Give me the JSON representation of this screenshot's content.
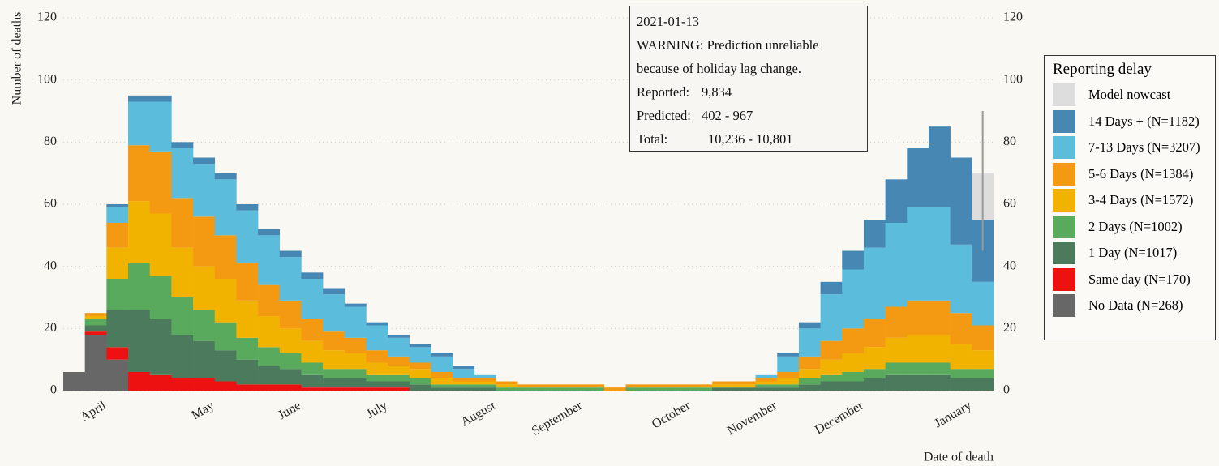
{
  "chart_data": {
    "type": "stacked-bar",
    "y_label": "Number of deaths",
    "x_label": "Date of death",
    "legend_title": "Reporting delay",
    "categories": [
      null,
      "April",
      null,
      null,
      null,
      null,
      "May",
      null,
      null,
      null,
      "June",
      null,
      null,
      null,
      "July",
      null,
      null,
      null,
      null,
      "August",
      null,
      null,
      null,
      "September",
      null,
      null,
      null,
      null,
      "October",
      null,
      null,
      null,
      "November",
      null,
      null,
      null,
      "December",
      null,
      null,
      null,
      null,
      "January",
      null
    ],
    "series": [
      {
        "name": "No Data (N=268)",
        "color": "#676767",
        "values": [
          6,
          18,
          10,
          0,
          0,
          0,
          0,
          0,
          0,
          0,
          0,
          0,
          0,
          0,
          0,
          0,
          0,
          0,
          0,
          0,
          0,
          0,
          0,
          0,
          0,
          0,
          0,
          0,
          0,
          0,
          0,
          0,
          0,
          0,
          0,
          0,
          0,
          0,
          0,
          0,
          0,
          0,
          0
        ]
      },
      {
        "name": "Same day (N=170)",
        "color": "#ee1111",
        "values": [
          0,
          1,
          4,
          6,
          5,
          4,
          4,
          3,
          2,
          2,
          2,
          1,
          1,
          1,
          1,
          1,
          0,
          0,
          0,
          0,
          0,
          0,
          0,
          0,
          0,
          0,
          0,
          0,
          0,
          0,
          0,
          0,
          0,
          0,
          0,
          0,
          0,
          0,
          0,
          0,
          0,
          0,
          0
        ]
      },
      {
        "name": "1 Day (N=1017)",
        "color": "#4c7a5c",
        "values": [
          0,
          2,
          12,
          20,
          18,
          14,
          12,
          10,
          8,
          6,
          5,
          4,
          3,
          3,
          2,
          2,
          2,
          1,
          1,
          1,
          0,
          0,
          0,
          0,
          0,
          0,
          0,
          0,
          0,
          0,
          1,
          1,
          1,
          1,
          2,
          3,
          3,
          4,
          5,
          5,
          5,
          4,
          4
        ]
      },
      {
        "name": "2 Days (N=1002)",
        "color": "#5aaa5e",
        "values": [
          0,
          2,
          10,
          15,
          14,
          12,
          10,
          9,
          7,
          6,
          5,
          4,
          3,
          3,
          2,
          2,
          2,
          1,
          1,
          1,
          1,
          1,
          1,
          1,
          1,
          0,
          1,
          1,
          1,
          1,
          0,
          0,
          1,
          1,
          2,
          2,
          3,
          3,
          4,
          4,
          4,
          3,
          3
        ]
      },
      {
        "name": "3-4 Days (N=1572)",
        "color": "#f2b300",
        "values": [
          0,
          1,
          10,
          20,
          20,
          16,
          14,
          14,
          12,
          10,
          8,
          7,
          6,
          5,
          4,
          3,
          3,
          2,
          1,
          1,
          1,
          0,
          0,
          0,
          0,
          0,
          0,
          0,
          0,
          0,
          1,
          1,
          1,
          2,
          3,
          5,
          6,
          7,
          8,
          9,
          9,
          8,
          6
        ]
      },
      {
        "name": "5-6 Days (N=1384)",
        "color": "#f39a12",
        "values": [
          0,
          1,
          8,
          18,
          20,
          16,
          16,
          14,
          12,
          10,
          9,
          7,
          6,
          5,
          4,
          3,
          2,
          2,
          1,
          1,
          1,
          1,
          1,
          1,
          1,
          1,
          1,
          1,
          1,
          1,
          1,
          1,
          1,
          2,
          4,
          6,
          8,
          9,
          10,
          11,
          11,
          10,
          8
        ]
      },
      {
        "name": "7-13 Days (N=3207)",
        "color": "#5bbcdc",
        "values": [
          0,
          0,
          5,
          14,
          16,
          16,
          17,
          18,
          17,
          16,
          14,
          13,
          12,
          10,
          8,
          6,
          5,
          5,
          3,
          1,
          0,
          0,
          0,
          0,
          0,
          0,
          0,
          0,
          0,
          0,
          0,
          0,
          1,
          5,
          9,
          15,
          19,
          23,
          27,
          30,
          30,
          22,
          14
        ]
      },
      {
        "name": "14 Days + (N=1182)",
        "color": "#4787b3",
        "values": [
          0,
          0,
          1,
          2,
          2,
          2,
          2,
          2,
          2,
          2,
          2,
          2,
          2,
          1,
          1,
          1,
          1,
          1,
          1,
          0,
          0,
          0,
          0,
          0,
          0,
          0,
          0,
          0,
          0,
          0,
          0,
          0,
          0,
          1,
          2,
          4,
          6,
          9,
          14,
          19,
          26,
          28,
          20
        ]
      },
      {
        "name": "Model nowcast",
        "color": "#dddddd",
        "values": [
          0,
          0,
          0,
          0,
          0,
          0,
          0,
          0,
          0,
          0,
          0,
          0,
          0,
          0,
          0,
          0,
          0,
          0,
          0,
          0,
          0,
          0,
          0,
          0,
          0,
          0,
          0,
          0,
          0,
          0,
          0,
          0,
          0,
          0,
          0,
          0,
          0,
          0,
          0,
          0,
          0,
          0,
          15
        ],
        "interval": [
          null,
          null,
          null,
          null,
          null,
          null,
          null,
          null,
          null,
          null,
          null,
          null,
          null,
          null,
          null,
          null,
          null,
          null,
          null,
          null,
          null,
          null,
          null,
          null,
          null,
          null,
          null,
          null,
          null,
          null,
          null,
          null,
          null,
          null,
          null,
          null,
          null,
          null,
          null,
          null,
          null,
          null,
          [
            45,
            90
          ]
        ],
        "interval_color": "#999999"
      }
    ],
    "ylim": [
      0,
      120
    ],
    "yticks": [
      0,
      20,
      40,
      60,
      80,
      100,
      120
    ],
    "grid": true,
    "tooltip": {
      "date": "2021-01-13",
      "warning": [
        "WARNING: Prediction unreliable",
        "because of holiday lag change."
      ],
      "rows": [
        {
          "label": "Reported:",
          "value": "9,834"
        },
        {
          "label": "Predicted:",
          "value": "402 - 967"
        },
        {
          "label": "Total:",
          "value": "10,236 - 10,801"
        }
      ]
    }
  }
}
